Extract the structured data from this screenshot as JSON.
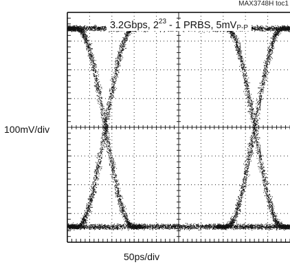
{
  "figure_ref": "MAX3748H toc1",
  "annotation": {
    "rate": "3.2Gbps, 2",
    "prbs_exp": "23",
    "prbs_rest": " - 1 PRBS, 5mV",
    "amp_sub": "P-P"
  },
  "chart_data": {
    "type": "scatter",
    "subtype": "eye-diagram",
    "title": "",
    "xlabel": "50ps/div",
    "ylabel": "100mV/div",
    "x_divisions": 10,
    "y_divisions": 8,
    "grid": true,
    "x_unit_per_div": "50ps",
    "y_unit_per_div": "100mV",
    "crossings_div": [
      1.7,
      8.4
    ],
    "low_level_div": 0.55,
    "high_level_div": 7.45,
    "eye_opening_div": 6.9
  },
  "colors": {
    "trace": "#111111",
    "grid": "#222222",
    "frame": "#000000"
  }
}
